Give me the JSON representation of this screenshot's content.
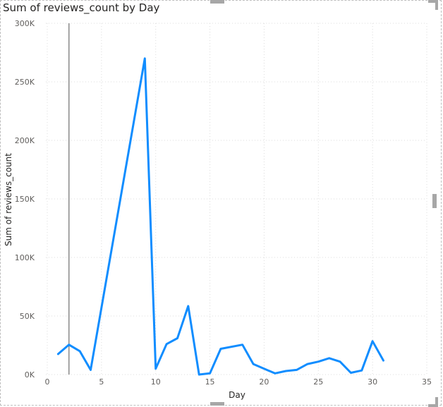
{
  "chart_data": {
    "type": "line",
    "title": "Sum of reviews_count by Day",
    "xlabel": "Day",
    "ylabel": "Sum of reviews_count",
    "xlim": [
      0,
      35
    ],
    "ylim": [
      0,
      300000
    ],
    "x_ticks": [
      0,
      5,
      10,
      15,
      20,
      25,
      30,
      35
    ],
    "x_tick_labels": [
      "0",
      "5",
      "10",
      "15",
      "20",
      "25",
      "30",
      "35"
    ],
    "y_ticks": [
      0,
      50000,
      100000,
      150000,
      200000,
      250000,
      300000
    ],
    "y_tick_labels": [
      "0K",
      "50K",
      "100K",
      "150K",
      "200K",
      "250K",
      "300K"
    ],
    "grid": true,
    "reference_line_x": 2,
    "series_color": "#118DFF",
    "series": [
      {
        "x": [
          1,
          2,
          3,
          4,
          9,
          10,
          11,
          12,
          13,
          14,
          15,
          16,
          18,
          19,
          21,
          22,
          23,
          24,
          25,
          26,
          27,
          28,
          29,
          30,
          31
        ],
        "y": [
          17500,
          25500,
          20000,
          4000,
          270000,
          5000,
          26000,
          31000,
          58500,
          0,
          1000,
          22000,
          25500,
          9000,
          1000,
          3000,
          4000,
          9000,
          11000,
          14000,
          11000,
          1500,
          3500,
          28500,
          12000
        ]
      }
    ]
  }
}
